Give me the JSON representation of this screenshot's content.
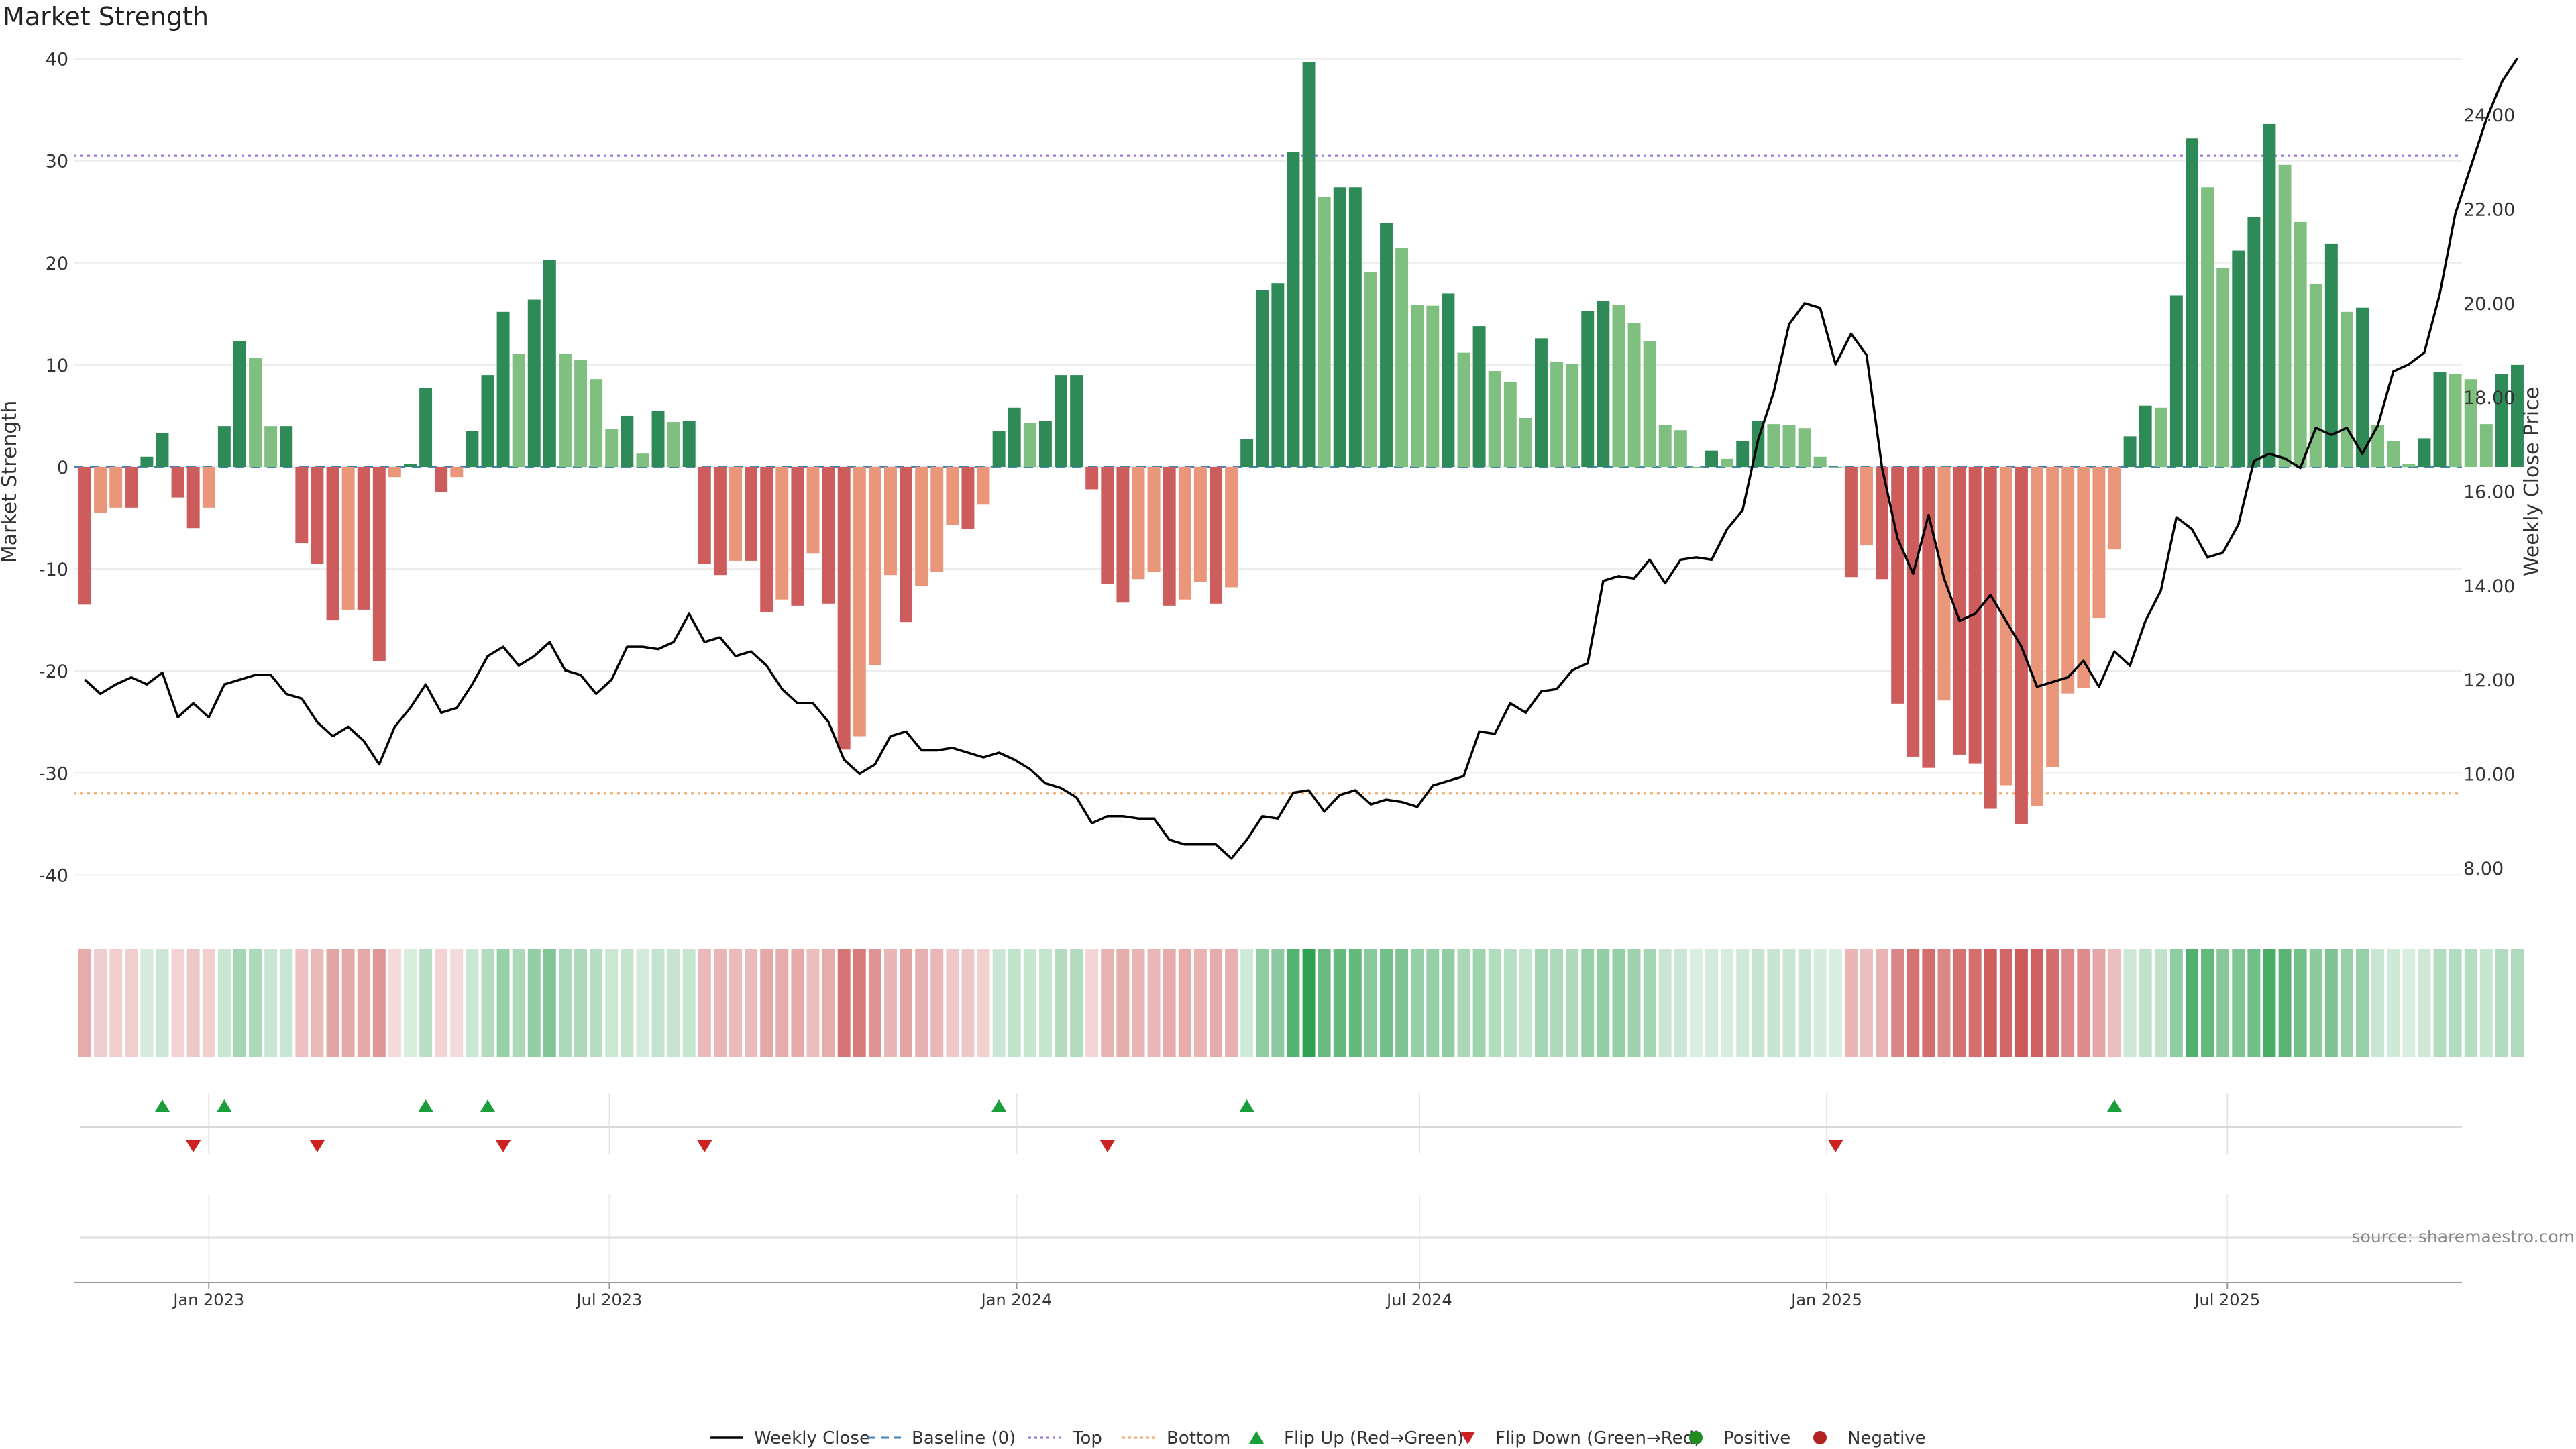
{
  "title": "Market Strength",
  "source": "source: sharemaestro.com",
  "y_left_label": "Market Strength",
  "y_right_label": "Weekly Close Price",
  "colors": {
    "green_dark": "#2e8b57",
    "green_light": "#7fbf7f",
    "red_dark": "#cd5c5c",
    "red_light": "#e9967a",
    "top_line": "#9370db",
    "bottom_line": "#f4a460",
    "baseline": "#4682b4",
    "price_line": "#000000",
    "flip_up": "#1a9e3a",
    "flip_down": "#cc2222",
    "positive": "#228b22",
    "negative": "#b22222"
  },
  "legend": [
    {
      "label": "Weekly Close",
      "kind": "line",
      "color": "#000000"
    },
    {
      "label": "Baseline (0)",
      "kind": "dash",
      "color": "#4682b4"
    },
    {
      "label": "Top",
      "kind": "dot",
      "color": "#9370db"
    },
    {
      "label": "Bottom",
      "kind": "dot",
      "color": "#f4a460"
    },
    {
      "label": "Flip Up (Red→Green)",
      "kind": "tri-up",
      "color": "#1a9e3a"
    },
    {
      "label": "Flip Down (Green→Red)",
      "kind": "tri-down",
      "color": "#cc2222"
    },
    {
      "label": "Positive",
      "kind": "circle",
      "color": "#228b22"
    },
    {
      "label": "Negative",
      "kind": "circle",
      "color": "#b22222"
    }
  ],
  "chart_data": {
    "type": "bar",
    "x_start_date": "2022-11-06",
    "x_interval": "weekly",
    "x_range": [
      "2022-11-01",
      "2025-10-15"
    ],
    "x_ticks": [
      "Jan 2023",
      "Jul 2023",
      "Jan 2024",
      "Jul 2024",
      "Jan 2025",
      "Jul 2025"
    ],
    "x_tick_dates": [
      "2023-01-01",
      "2023-07-01",
      "2024-01-01",
      "2024-07-01",
      "2025-01-01",
      "2025-07-01"
    ],
    "ylim_left": [
      -43,
      40.5
    ],
    "y_left_ticks": [
      40,
      30,
      20,
      10,
      0,
      -10,
      -20,
      -30,
      -40
    ],
    "ylim_right": [
      7.2,
      25.3
    ],
    "y_right_ticks": [
      "24.00",
      "22.00",
      "20.00",
      "18.00",
      "16.00",
      "14.00",
      "12.00",
      "10.00",
      "8.00"
    ],
    "top_line": 30.5,
    "bottom_line": -32,
    "baseline": 0,
    "grid": true,
    "legend_position": "bottom",
    "series": [
      {
        "name": "Market Strength",
        "values": [
          -13.5,
          -4.5,
          -4,
          -4,
          1,
          3.3,
          -3,
          -6,
          -4,
          4,
          12.3,
          10.7,
          4,
          4,
          -7.5,
          -9.5,
          -15,
          -14,
          -14,
          -19,
          -1,
          0.3,
          7.7,
          -2.5,
          -1,
          3.5,
          9,
          15.2,
          11.1,
          16.4,
          20.3,
          11.1,
          10.5,
          8.6,
          3.7,
          5,
          1.3,
          5.5,
          4.4,
          4.5,
          -9.5,
          -10.6,
          -9.2,
          -9.2,
          -14.2,
          -13,
          -13.6,
          -8.5,
          -13.4,
          -27.7,
          -26.4,
          -19.4,
          -10.6,
          -15.2,
          -11.7,
          -10.3,
          -5.7,
          -6.1,
          -3.7,
          3.5,
          5.8,
          4.3,
          4.5,
          9,
          9,
          -2.2,
          -11.5,
          -13.3,
          -11,
          -10.3,
          -13.6,
          -13,
          -11.3,
          -13.4,
          -11.8,
          2.7,
          17.3,
          18,
          30.9,
          39.7,
          26.5,
          27.4,
          27.4,
          19.1,
          23.9,
          21.5,
          15.9,
          15.8,
          17,
          11.2,
          13.8,
          9.4,
          8.3,
          4.8,
          12.6,
          10.3,
          10.1,
          15.3,
          16.3,
          15.9,
          14.1,
          12.3,
          4.1,
          3.6,
          0,
          1.6,
          0.8,
          2.5,
          4.5,
          4.2,
          4.1,
          3.8,
          1,
          0,
          -10.8,
          -7.7,
          -11,
          -23.2,
          -28.4,
          -29.5,
          -22.9,
          -28.2,
          -29.1,
          -33.5,
          -31.2,
          -35,
          -33.2,
          -29.4,
          -22.2,
          -21.7,
          -14.8,
          -8.1,
          3,
          6,
          5.8,
          16.8,
          32.2,
          27.4,
          19.5,
          21.2,
          24.5,
          33.6,
          29.6,
          24,
          17.9,
          21.9,
          15.2,
          15.6,
          4.1,
          2.5,
          0.3,
          2.8,
          9.3,
          9.1,
          8.6,
          4.2,
          9.1,
          10
        ]
      },
      {
        "name": "Weekly Close",
        "values": [
          12,
          11.7,
          11.9,
          12.05,
          11.9,
          12.15,
          11.2,
          11.5,
          11.2,
          11.9,
          12,
          12.1,
          12.1,
          11.7,
          11.6,
          11.1,
          10.8,
          11,
          10.7,
          10.2,
          11,
          11.4,
          11.9,
          11.3,
          11.4,
          11.9,
          12.5,
          12.7,
          12.3,
          12.5,
          12.8,
          12.2,
          12.1,
          11.7,
          12,
          12.7,
          12.7,
          12.65,
          12.8,
          13.4,
          12.8,
          12.9,
          12.5,
          12.6,
          12.3,
          11.8,
          11.5,
          11.5,
          11.1,
          10.3,
          10,
          10.2,
          10.8,
          10.9,
          10.5,
          10.5,
          10.55,
          10.45,
          10.35,
          10.45,
          10.3,
          10.1,
          9.8,
          9.7,
          9.5,
          8.95,
          9.1,
          9.1,
          9.05,
          9.05,
          8.6,
          8.5,
          8.5,
          8.5,
          8.2,
          8.6,
          9.1,
          9.05,
          9.6,
          9.65,
          9.2,
          9.55,
          9.65,
          9.35,
          9.45,
          9.4,
          9.3,
          9.75,
          9.85,
          9.95,
          10.9,
          10.85,
          11.5,
          11.3,
          11.75,
          11.8,
          12.2,
          12.35,
          14.1,
          14.2,
          14.15,
          14.55,
          14.05,
          14.55,
          14.6,
          14.55,
          15.2,
          15.6,
          17.1,
          18.1,
          19.55,
          20,
          19.9,
          18.7,
          19.35,
          18.9,
          16.5,
          15,
          14.25,
          15.5,
          14.15,
          13.25,
          13.4,
          13.8,
          13.25,
          12.7,
          11.85,
          11.95,
          12.05,
          12.4,
          11.85,
          12.6,
          12.3,
          13.25,
          13.9,
          15.45,
          15.2,
          14.6,
          14.7,
          15.3,
          16.65,
          16.8,
          16.7,
          16.5,
          17.35,
          17.2,
          17.35,
          16.8,
          17.4,
          18.55,
          18.7,
          18.95,
          20.2,
          21.9,
          22.9,
          23.9,
          24.7,
          25.2
        ]
      }
    ],
    "flip_up_dates": [
      "2022-12-11",
      "2023-01-08",
      "2023-04-09",
      "2023-05-07",
      "2023-12-24",
      "2024-04-14",
      "2025-05-11"
    ],
    "flip_down_dates": [
      "2022-12-25",
      "2023-02-19",
      "2023-05-14",
      "2023-08-13",
      "2024-02-11",
      "2025-01-05"
    ]
  }
}
